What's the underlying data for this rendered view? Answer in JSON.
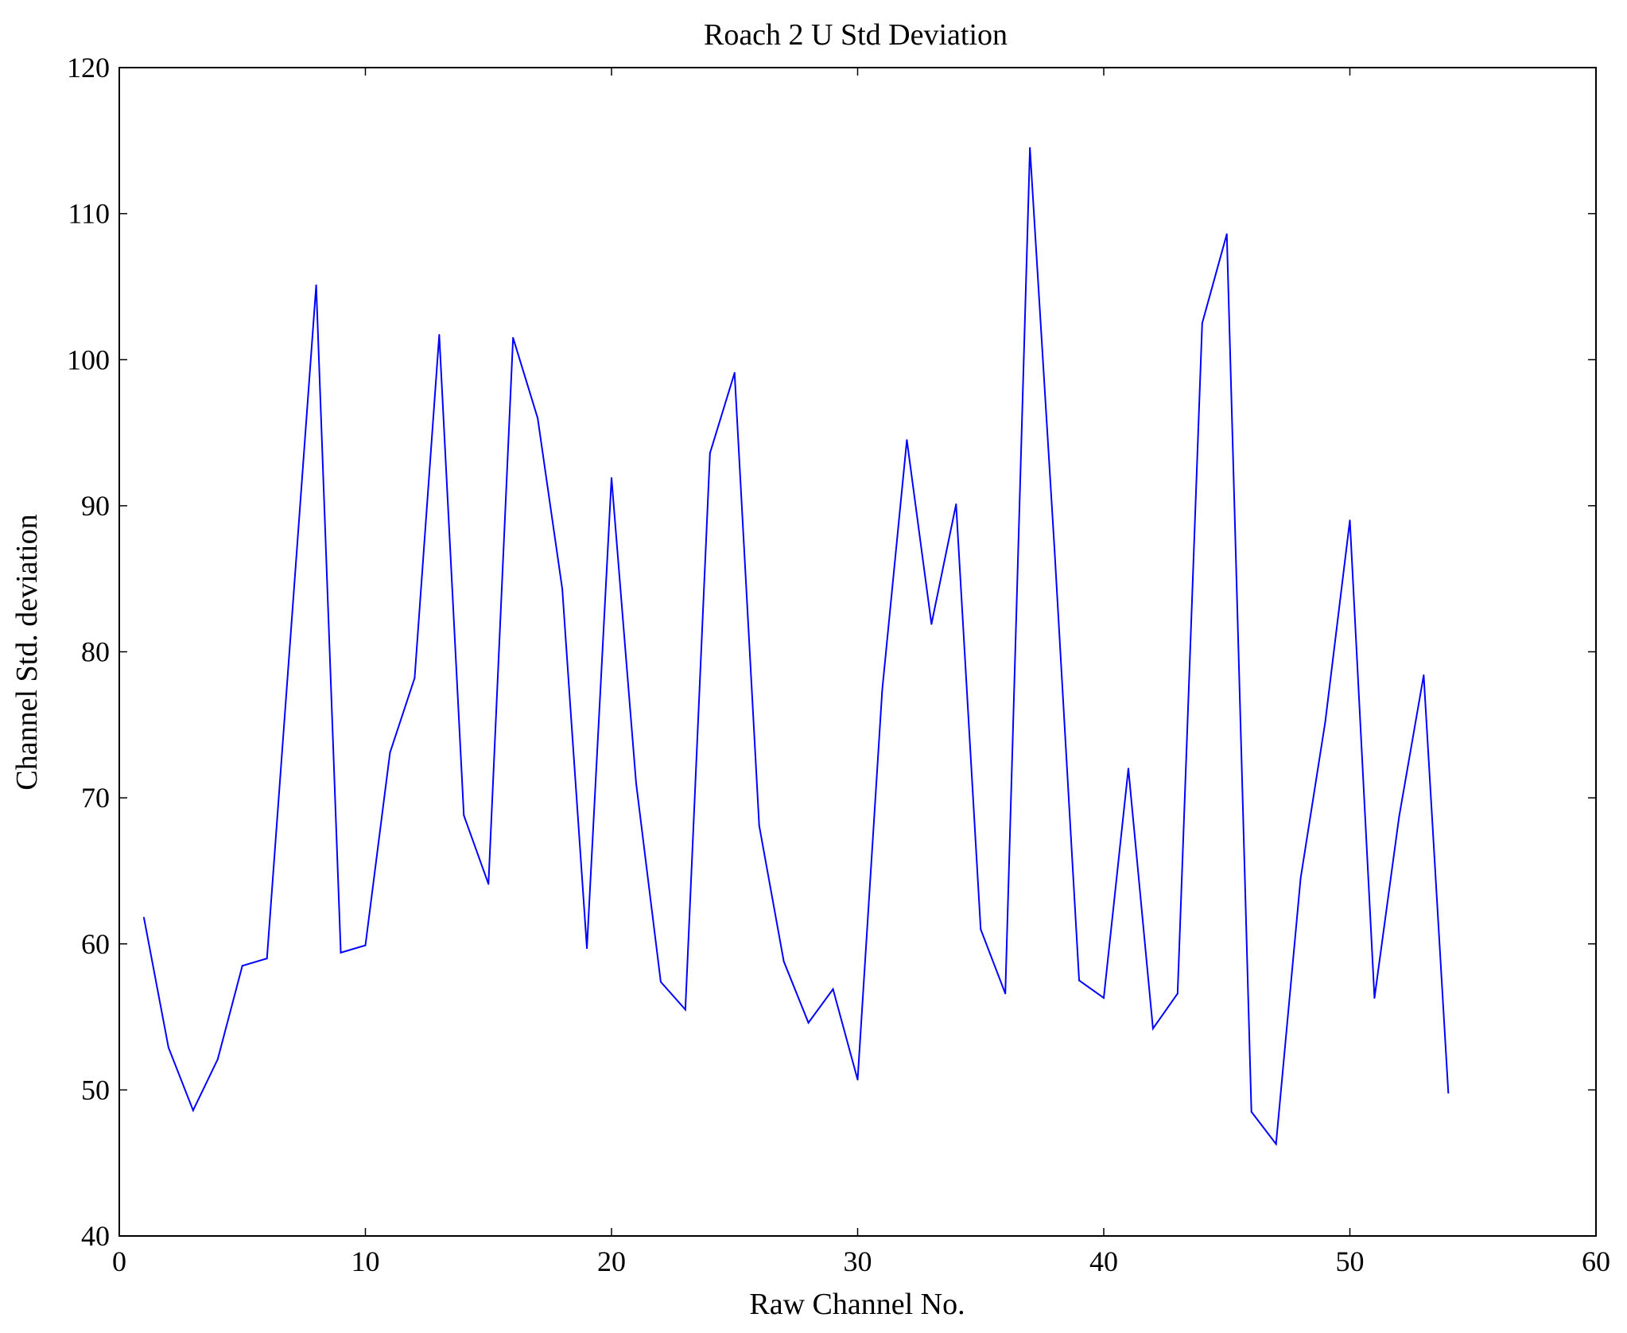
{
  "chart_data": {
    "type": "line",
    "title": "Roach 2 U Std Deviation",
    "xlabel": "Raw Channel No.",
    "ylabel": "Channel Std. deviation",
    "xlim": [
      0,
      60
    ],
    "ylim": [
      40,
      120
    ],
    "xticks": [
      0,
      10,
      20,
      30,
      40,
      50,
      60
    ],
    "yticks": [
      40,
      50,
      60,
      70,
      80,
      90,
      100,
      110,
      120
    ],
    "grid": false,
    "series": [
      {
        "name": "U std deviation",
        "color": "#0000ff",
        "x": [
          1,
          2,
          3,
          4,
          5,
          6,
          7,
          8,
          9,
          10,
          11,
          12,
          13,
          14,
          15,
          16,
          17,
          18,
          19,
          20,
          21,
          22,
          23,
          24,
          25,
          26,
          27,
          28,
          29,
          30,
          31,
          32,
          33,
          34,
          35,
          36,
          37,
          38,
          39,
          40,
          41,
          42,
          43,
          44,
          45,
          46,
          47,
          48,
          49,
          50,
          51,
          52,
          53,
          54
        ],
        "y": [
          61.8,
          52.9,
          48.6,
          52.1,
          58.5,
          59.0,
          82.0,
          105.1,
          59.4,
          59.9,
          73.1,
          78.2,
          101.7,
          68.8,
          64.1,
          101.5,
          96.0,
          84.3,
          59.7,
          91.9,
          71.0,
          57.4,
          55.5,
          93.6,
          99.1,
          68.1,
          58.8,
          54.6,
          56.9,
          50.7,
          77.4,
          94.5,
          81.9,
          90.1,
          61.0,
          56.6,
          114.5,
          87.0,
          57.5,
          56.3,
          72.0,
          54.2,
          56.6,
          102.5,
          108.6,
          48.5,
          46.3,
          64.5,
          75.2,
          89.0,
          56.3,
          68.7,
          78.4,
          49.8
        ]
      }
    ]
  }
}
